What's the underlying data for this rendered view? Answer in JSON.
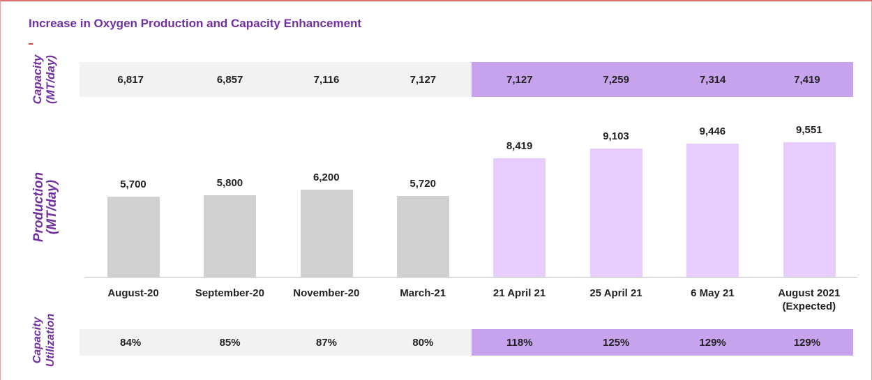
{
  "chart_data": {
    "type": "bar",
    "title": "Increase in Oxygen Production and Capacity Enhancement",
    "categories": [
      "August-20",
      "September-20",
      "November-20",
      "March-21",
      "21 April 21",
      "25 April 21",
      "6 May 21",
      "August 2021 (Expected)"
    ],
    "values": [
      5700,
      5800,
      6200,
      5720,
      8419,
      9103,
      9446,
      9551
    ],
    "value_labels": [
      "5,700",
      "5,800",
      "6,200",
      "5,720",
      "8,419",
      "9,103",
      "9,446",
      "9,551"
    ],
    "colors": [
      "#d0d0d0",
      "#d0d0d0",
      "#d0d0d0",
      "#d0d0d0",
      "#e6ccff",
      "#e6ccff",
      "#e6ccff",
      "#e6ccff"
    ],
    "cell_colors": [
      "#f2f2f2",
      "#f2f2f2",
      "#f2f2f2",
      "#f2f2f2",
      "#c7a3ee",
      "#c7a3ee",
      "#c7a3ee",
      "#c7a3ee"
    ],
    "production_title": [
      "Production",
      "(MT/day)"
    ],
    "capacity": {
      "title": [
        "Capacity",
        "(MT/day)"
      ],
      "cells": [
        "6,817",
        "6,857",
        "7,116",
        "7,127",
        "7,127",
        "7,259",
        "7,314",
        "7,419"
      ]
    },
    "utilization": {
      "title": [
        "Capacity",
        "Utilization"
      ],
      "cells": [
        "84%",
        "85%",
        "87%",
        "80%",
        "118%",
        "125%",
        "129%",
        "129%"
      ]
    }
  }
}
